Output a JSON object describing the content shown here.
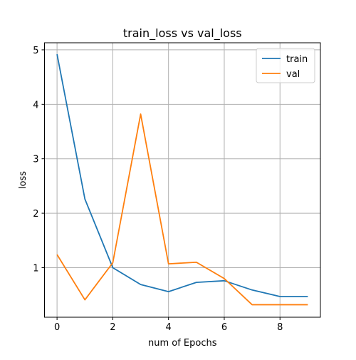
{
  "chart_data": {
    "type": "line",
    "title": "train_loss vs val_loss",
    "xlabel": "num of Epochs",
    "ylabel": "loss",
    "x": [
      0,
      1,
      2,
      3,
      4,
      5,
      6,
      7,
      8,
      9
    ],
    "xlim": [
      -0.45,
      9.45
    ],
    "ylim": [
      0.09,
      5.13
    ],
    "xticks": [
      0,
      2,
      4,
      6,
      8
    ],
    "yticks": [
      1,
      2,
      3,
      4,
      5
    ],
    "grid": true,
    "legend_position": "top-right",
    "series": [
      {
        "name": "train",
        "color": "#1f77b4",
        "values": [
          4.92,
          2.26,
          1.0,
          0.69,
          0.56,
          0.73,
          0.76,
          0.59,
          0.47,
          0.47
        ]
      },
      {
        "name": "val",
        "color": "#ff7f0e",
        "values": [
          1.24,
          0.41,
          1.09,
          3.82,
          1.07,
          1.1,
          0.8,
          0.32,
          0.32,
          0.32
        ]
      }
    ]
  }
}
